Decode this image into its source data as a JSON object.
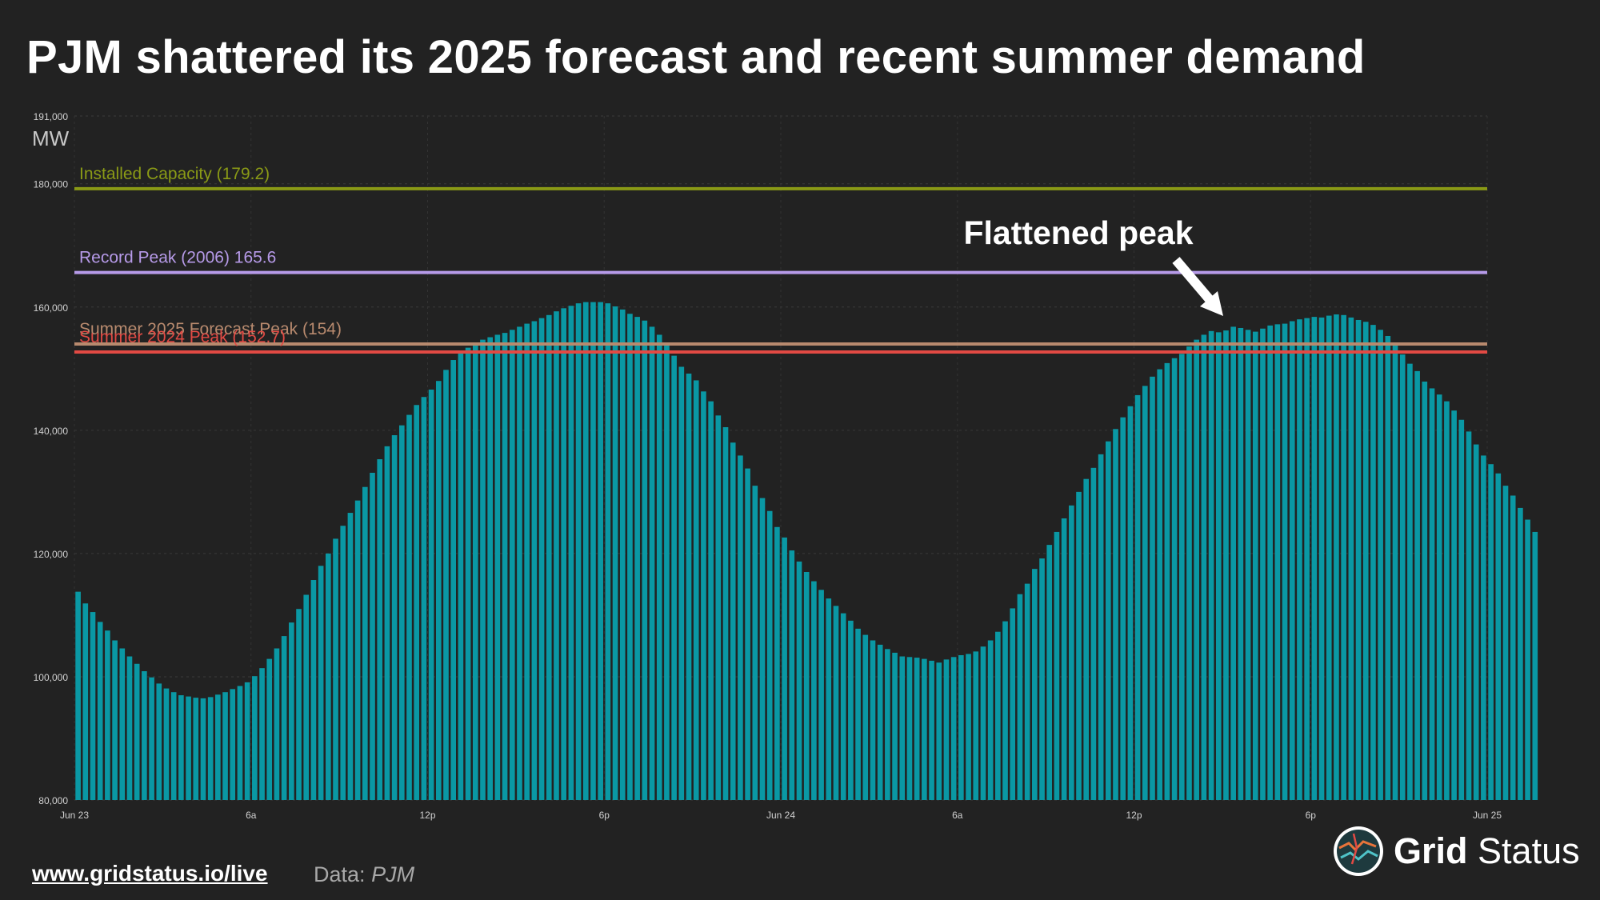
{
  "title": "PJM shattered its 2025 forecast and recent summer demand",
  "annotation": "Flattened peak",
  "footer": {
    "link": "www.gridstatus.io/live",
    "source_label": "Data:",
    "source_name": "PJM"
  },
  "logo": {
    "word1": "Grid",
    "word2": "Status"
  },
  "colors": {
    "background": "#222222",
    "bar": "#0a98a4",
    "installed_capacity": "#8a9a16",
    "record_peak": "#b69ae8",
    "forecast_peak": "#b88a6e",
    "summer_2024_peak": "#e24a44"
  },
  "chart_data": {
    "type": "bar",
    "ylabel": "MW",
    "ylim": [
      80000,
      191000
    ],
    "y_ticks": [
      {
        "value": 80000,
        "label": "80,000"
      },
      {
        "value": 100000,
        "label": "100,000"
      },
      {
        "value": 120000,
        "label": "120,000"
      },
      {
        "value": 140000,
        "label": "140,000"
      },
      {
        "value": 160000,
        "label": "160,000"
      },
      {
        "value": 180000,
        "label": "180,000"
      },
      {
        "value": 191000,
        "label": "191,000"
      }
    ],
    "x_ticks": [
      {
        "index": 0,
        "label": "Jun 23"
      },
      {
        "index": 24,
        "label": "6a"
      },
      {
        "index": 48,
        "label": "12p"
      },
      {
        "index": 72,
        "label": "6p"
      },
      {
        "index": 96,
        "label": "Jun 24"
      },
      {
        "index": 120,
        "label": "6a"
      },
      {
        "index": 144,
        "label": "12p"
      },
      {
        "index": 168,
        "label": "6p"
      },
      {
        "index": 192,
        "label": "Jun 25"
      }
    ],
    "interval": "15 min",
    "grid": true,
    "reference_lines": [
      {
        "label": "Installed Capacity  (179.2)",
        "value": 179200,
        "color_key": "installed_capacity"
      },
      {
        "label": "Record Peak (2006) 165.6",
        "value": 165600,
        "color_key": "record_peak"
      },
      {
        "label": "Summer 2025 Forecast Peak (154)",
        "value": 154000,
        "color_key": "forecast_peak"
      },
      {
        "label": "Summer 2024 Peak (152.7)",
        "value": 152700,
        "color_key": "summer_2024_peak"
      }
    ],
    "series": [
      {
        "values": [
          113800,
          111900,
          110500,
          108900,
          107500,
          105900,
          104600,
          103300,
          102100,
          100900,
          99900,
          98900,
          98100,
          97500,
          97000,
          96800,
          96600,
          96500,
          96700,
          97100,
          97500,
          98000,
          98500,
          99100,
          100100,
          101400,
          102900,
          104600,
          106600,
          108800,
          111000,
          113300,
          115700,
          118000,
          120000,
          122400,
          124500,
          126600,
          128600,
          130800,
          133100,
          135300,
          137400,
          139200,
          140800,
          142500,
          144100,
          145400,
          146600,
          148000,
          149800,
          151400,
          152600,
          153400,
          154200,
          154700,
          155100,
          155500,
          155800,
          156300,
          156800,
          157300,
          157700,
          158200,
          158700,
          159300,
          159800,
          160200,
          160600,
          160800,
          160800,
          160800,
          160600,
          160100,
          159600,
          158900,
          158400,
          157800,
          156800,
          155500,
          153900,
          152100,
          150300,
          149200,
          148100,
          146300,
          144700,
          142400,
          140500,
          138000,
          135900,
          133800,
          131000,
          129000,
          126900,
          124300,
          122600,
          120500,
          118700,
          117000,
          115500,
          114100,
          112700,
          111500,
          110300,
          109100,
          107800,
          106800,
          105900,
          105200,
          104500,
          103900,
          103300,
          103200,
          103100,
          102900,
          102600,
          102300,
          102800,
          103200,
          103500,
          103700,
          104100,
          104900,
          105900,
          107300,
          109000,
          111100,
          113400,
          115100,
          117500,
          119200,
          121400,
          123500,
          125700,
          127800,
          130000,
          132100,
          133900,
          136100,
          138200,
          140200,
          142100,
          143900,
          145700,
          147200,
          148700,
          149900,
          150900,
          151700,
          152400,
          153600,
          154700,
          155500,
          156100,
          155900,
          156200,
          156800,
          156600,
          156300,
          156000,
          156500,
          157000,
          157200,
          157300,
          157700,
          158000,
          158200,
          158400,
          158300,
          158600,
          158800,
          158700,
          158300,
          157900,
          157600,
          157100,
          156300,
          155300,
          154100,
          152300,
          150800,
          149600,
          147900,
          146800,
          145800,
          144700,
          143200,
          141700,
          139800,
          137700,
          135900,
          134500,
          133000,
          131000,
          129400,
          127400,
          125500,
          123500
        ]
      }
    ]
  }
}
